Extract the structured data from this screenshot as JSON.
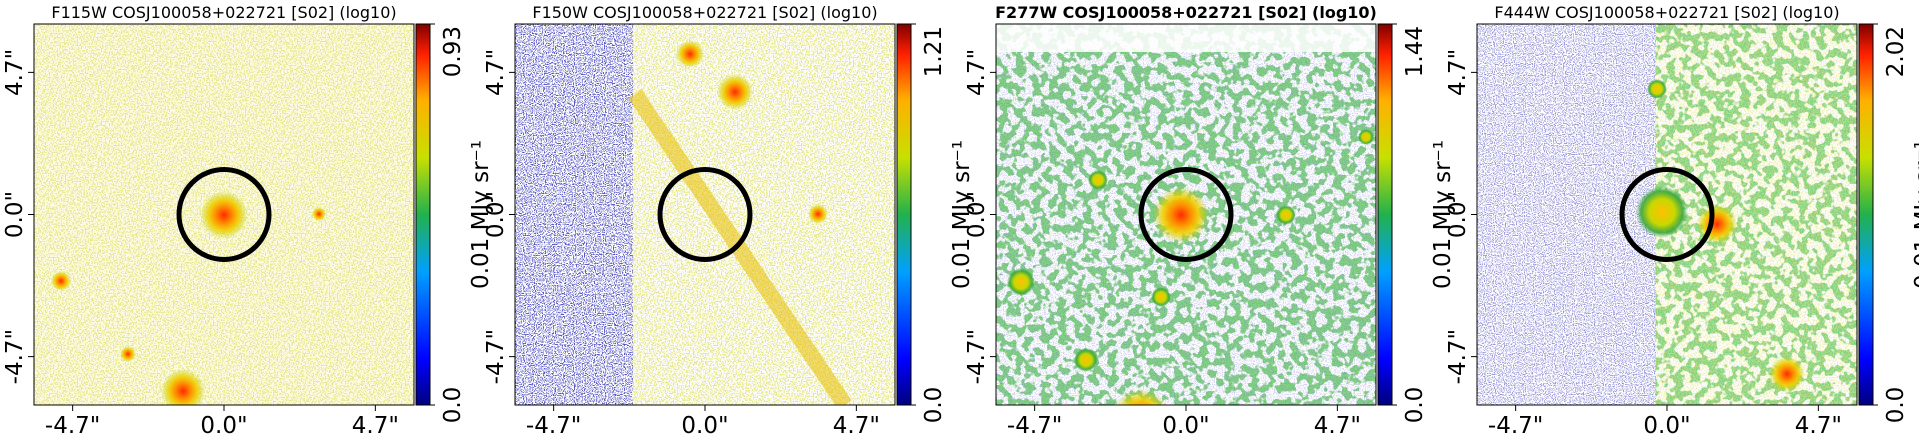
{
  "chart_data": [
    {
      "type": "image",
      "title": "F115W COSJ100058+022721 [S02] (log10)",
      "title_bold": false,
      "xlim": [
        -5.9,
        5.9
      ],
      "ylim": [
        -6.3,
        6.3
      ],
      "xticks": [
        {
          "value": -4.7,
          "label": "-4.7\""
        },
        {
          "value": 0,
          "label": "0.0\""
        },
        {
          "value": 4.7,
          "label": "4.7\""
        }
      ],
      "yticks": [
        {
          "value": -4.7,
          "label": "-4.7\""
        },
        {
          "value": 0,
          "label": "0.0\""
        },
        {
          "value": 4.7,
          "label": "4.7\""
        }
      ],
      "clim": [
        0,
        0.93
      ],
      "cticks": [
        {
          "value": 0,
          "label": "0.0"
        },
        0.93
      ],
      "colorbar_label": "0.01 MJy sr⁻¹"
    },
    {
      "type": "image",
      "title": "F150W COSJ100058+022721 [S02] (log10)",
      "title_bold": false,
      "xlim": [
        -5.9,
        5.9
      ],
      "ylim": [
        -6.3,
        6.3
      ],
      "xticks": [
        {
          "value": -4.7,
          "label": "-4.7\""
        },
        {
          "value": 0,
          "label": "0.0\""
        },
        {
          "value": 4.7,
          "label": "4.7\""
        }
      ],
      "yticks": [
        {
          "value": -4.7,
          "label": "-4.7\""
        },
        {
          "value": 0,
          "label": "0.0\""
        },
        {
          "value": 4.7,
          "label": "4.7\""
        }
      ],
      "clim": [
        0,
        1.21
      ],
      "cticks": [
        {
          "value": 0,
          "label": "0.0"
        },
        1.21
      ],
      "colorbar_label": "0.01 MJy sr⁻¹"
    },
    {
      "type": "image",
      "title": "F277W COSJ100058+022721 [S02] (log10)",
      "title_bold": true,
      "xlim": [
        -5.9,
        5.9
      ],
      "ylim": [
        -6.3,
        6.3
      ],
      "xticks": [
        {
          "value": -4.7,
          "label": "-4.7\""
        },
        {
          "value": 0,
          "label": "0.0\""
        },
        {
          "value": 4.7,
          "label": "4.7\""
        }
      ],
      "yticks": [
        {
          "value": -4.7,
          "label": "-4.7\""
        },
        {
          "value": 0,
          "label": "0.0\""
        },
        {
          "value": 4.7,
          "label": "4.7\""
        }
      ],
      "clim": [
        0,
        1.44
      ],
      "cticks": [
        {
          "value": 0,
          "label": "0.0"
        },
        1.44
      ],
      "colorbar_label": "0.01 MJy sr⁻¹"
    },
    {
      "type": "image",
      "title": "F444W COSJ100058+022721 [S02] (log10)",
      "title_bold": false,
      "xlim": [
        -5.9,
        5.9
      ],
      "ylim": [
        -6.3,
        6.3
      ],
      "xticks": [
        {
          "value": -4.7,
          "label": "-4.7\""
        },
        {
          "value": 0,
          "label": "0.0\""
        },
        {
          "value": 4.7,
          "label": "4.7\""
        }
      ],
      "yticks": [
        {
          "value": -4.7,
          "label": "-4.7\""
        },
        {
          "value": 0,
          "label": "0.0\""
        },
        {
          "value": 4.7,
          "label": "4.7\""
        }
      ],
      "clim": [
        0,
        2.02
      ],
      "cticks": [
        {
          "value": 0,
          "label": "0.0"
        },
        2.02
      ],
      "colorbar_label": "0.01 MJy sr⁻¹"
    }
  ]
}
